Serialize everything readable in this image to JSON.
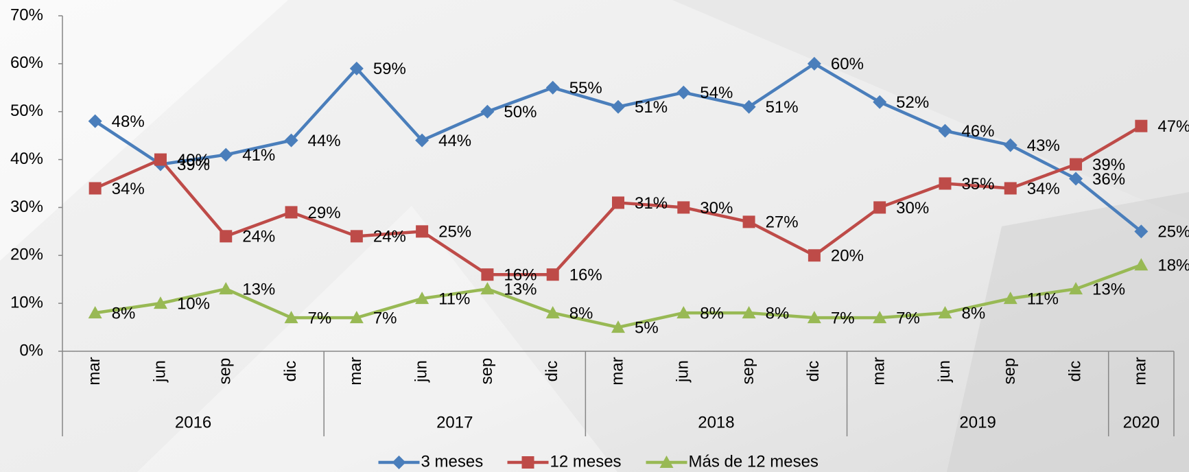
{
  "chart_data": {
    "type": "line",
    "categories": [
      "mar",
      "jun",
      "sep",
      "dic",
      "mar",
      "jun",
      "sep",
      "dic",
      "mar",
      "jun",
      "sep",
      "dic",
      "mar",
      "jun",
      "sep",
      "dic",
      "mar"
    ],
    "year_groups": [
      {
        "label": "2016",
        "span": 4
      },
      {
        "label": "2017",
        "span": 4
      },
      {
        "label": "2018",
        "span": 4
      },
      {
        "label": "2019",
        "span": 4
      },
      {
        "label": "2020",
        "span": 1
      }
    ],
    "series": [
      {
        "name": "3 meses",
        "color": "#4a7ebb",
        "marker": "diamond",
        "values": [
          48,
          39,
          41,
          44,
          59,
          44,
          50,
          55,
          51,
          54,
          51,
          60,
          52,
          46,
          43,
          36,
          25
        ],
        "value_labels": [
          "48%",
          "39%",
          "41%",
          "44%",
          "59%",
          "44%",
          "50%",
          "55%",
          "51%",
          "54%",
          "51%",
          "60%",
          "52%",
          "46%",
          "43%",
          "36%",
          "25%"
        ]
      },
      {
        "name": "12 meses",
        "color": "#be4b48",
        "marker": "square",
        "values": [
          34,
          40,
          24,
          29,
          24,
          25,
          16,
          16,
          31,
          30,
          27,
          20,
          30,
          35,
          34,
          39,
          47
        ],
        "value_labels": [
          "34%",
          "40%",
          "24%",
          "29%",
          "24%",
          "25%",
          "16%",
          "16%",
          "31%",
          "30%",
          "27%",
          "20%",
          "30%",
          "35%",
          "34%",
          "39%",
          "47%"
        ]
      },
      {
        "name": "Más de 12 meses",
        "color": "#98b954",
        "marker": "triangle",
        "values": [
          8,
          10,
          13,
          7,
          7,
          11,
          13,
          8,
          5,
          8,
          8,
          7,
          7,
          8,
          11,
          13,
          18
        ],
        "value_labels": [
          "8%",
          "10%",
          "13%",
          "7%",
          "7%",
          "11%",
          "13%",
          "8%",
          "5%",
          "8%",
          "8%",
          "7%",
          "7%",
          "8%",
          "11%",
          "13%",
          "18%"
        ]
      }
    ],
    "ylim": [
      0,
      70
    ],
    "yticks": [
      {
        "value": 0,
        "label": "0%"
      },
      {
        "value": 10,
        "label": "10%"
      },
      {
        "value": 20,
        "label": "20%"
      },
      {
        "value": 30,
        "label": "30%"
      },
      {
        "value": 40,
        "label": "40%"
      },
      {
        "value": 50,
        "label": "50%"
      },
      {
        "value": 60,
        "label": "60%"
      },
      {
        "value": 70,
        "label": "70%"
      }
    ],
    "grid": false,
    "legend": "bottom"
  }
}
